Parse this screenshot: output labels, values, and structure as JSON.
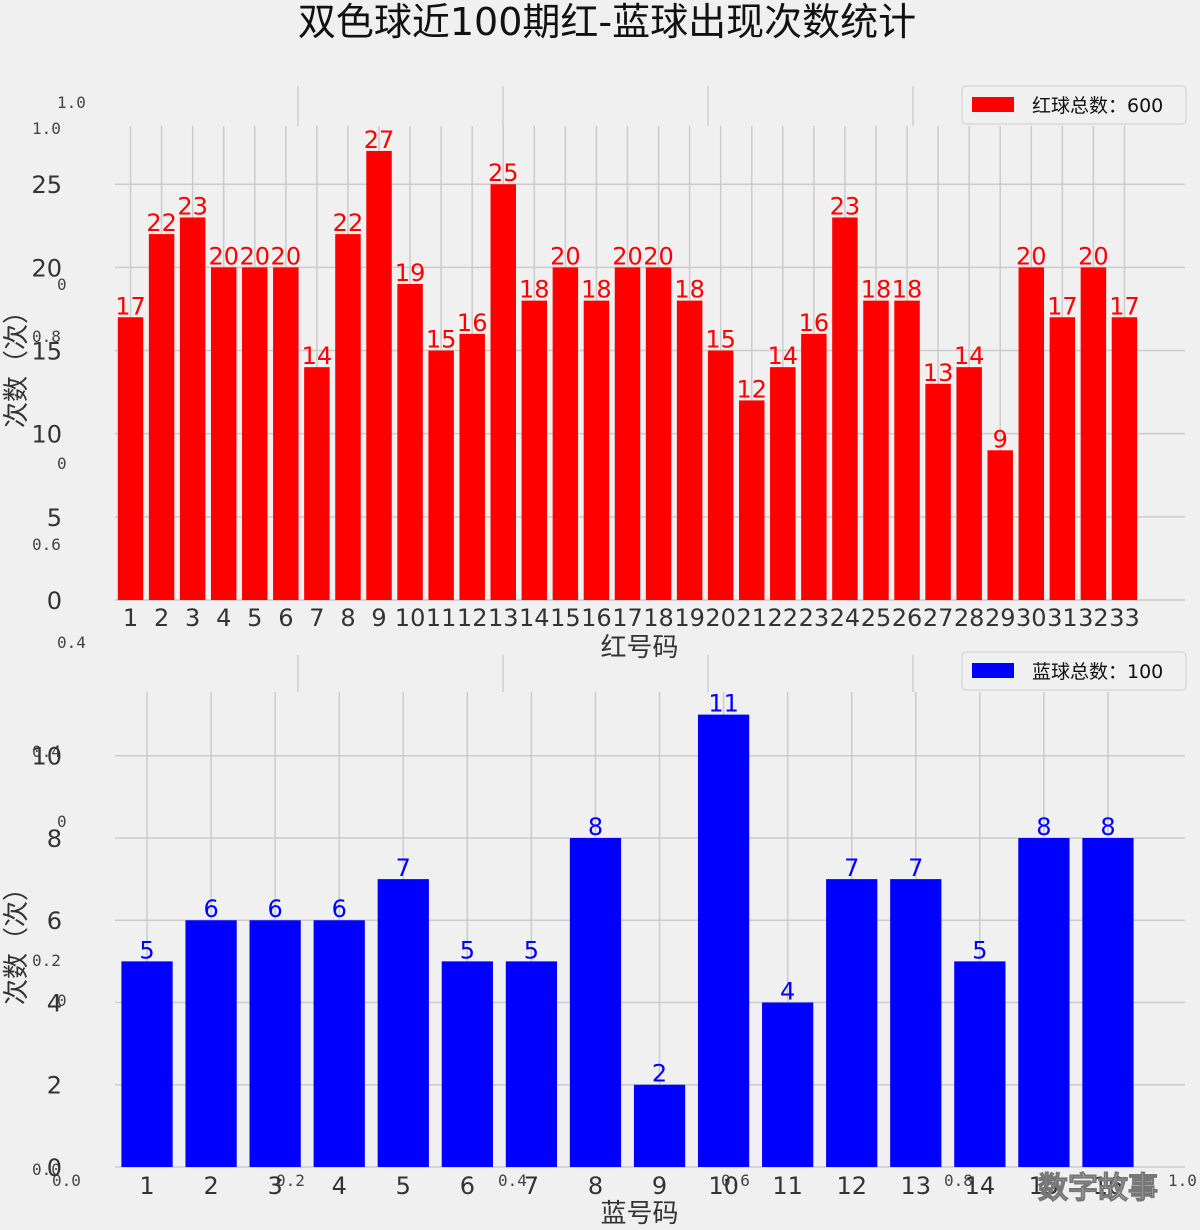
{
  "title": "双色球近100期红-蓝球出现次数统计",
  "watermark": "数字故事",
  "colors": {
    "red": "#ff0000",
    "blue": "#0000ff"
  },
  "chart_data": [
    {
      "type": "bar",
      "title": "",
      "xlabel": "红号码",
      "ylabel": "次数（次）",
      "legend": {
        "label": "红球总数：600",
        "placement": "top-right"
      },
      "categories": [
        "1",
        "2",
        "3",
        "4",
        "5",
        "6",
        "7",
        "8",
        "9",
        "10",
        "11",
        "12",
        "13",
        "14",
        "15",
        "16",
        "17",
        "18",
        "19",
        "20",
        "21",
        "22",
        "23",
        "24",
        "25",
        "26",
        "27",
        "28",
        "29",
        "30",
        "31",
        "32",
        "33"
      ],
      "values": [
        17,
        22,
        23,
        20,
        20,
        20,
        14,
        22,
        27,
        19,
        15,
        16,
        25,
        18,
        20,
        18,
        20,
        20,
        18,
        15,
        12,
        14,
        16,
        23,
        18,
        18,
        13,
        14,
        9,
        20,
        17,
        20,
        17
      ],
      "yticks": [
        "0",
        "5",
        "10",
        "15",
        "20",
        "25"
      ],
      "ylim": [
        0,
        28.5
      ],
      "color": "#ff0000",
      "grid": true
    },
    {
      "type": "bar",
      "title": "",
      "xlabel": "蓝号码",
      "ylabel": "次数（次）",
      "legend": {
        "label": "蓝球总数：100",
        "placement": "top-right"
      },
      "categories": [
        "1",
        "2",
        "3",
        "4",
        "5",
        "6",
        "7",
        "8",
        "9",
        "10",
        "11",
        "12",
        "13",
        "14",
        "15",
        "16"
      ],
      "values": [
        5,
        6,
        6,
        6,
        7,
        5,
        5,
        8,
        2,
        11,
        4,
        7,
        7,
        5,
        8,
        8
      ],
      "yticks": [
        "0",
        "2",
        "4",
        "6",
        "8",
        "10"
      ],
      "ylim": [
        0,
        11.55
      ],
      "color": "#0000ff",
      "grid": true
    }
  ],
  "ghost_axis": {
    "left_labels": [
      "1.0",
      "1.0",
      "0",
      "0.8",
      "0",
      "0.6",
      "0.4",
      "0.4",
      "0",
      "0.2",
      "0",
      "0.0"
    ],
    "bottom_labels": [
      "0.0",
      "0.2",
      "0.4",
      "0.6",
      "0.8",
      "1.0"
    ]
  }
}
